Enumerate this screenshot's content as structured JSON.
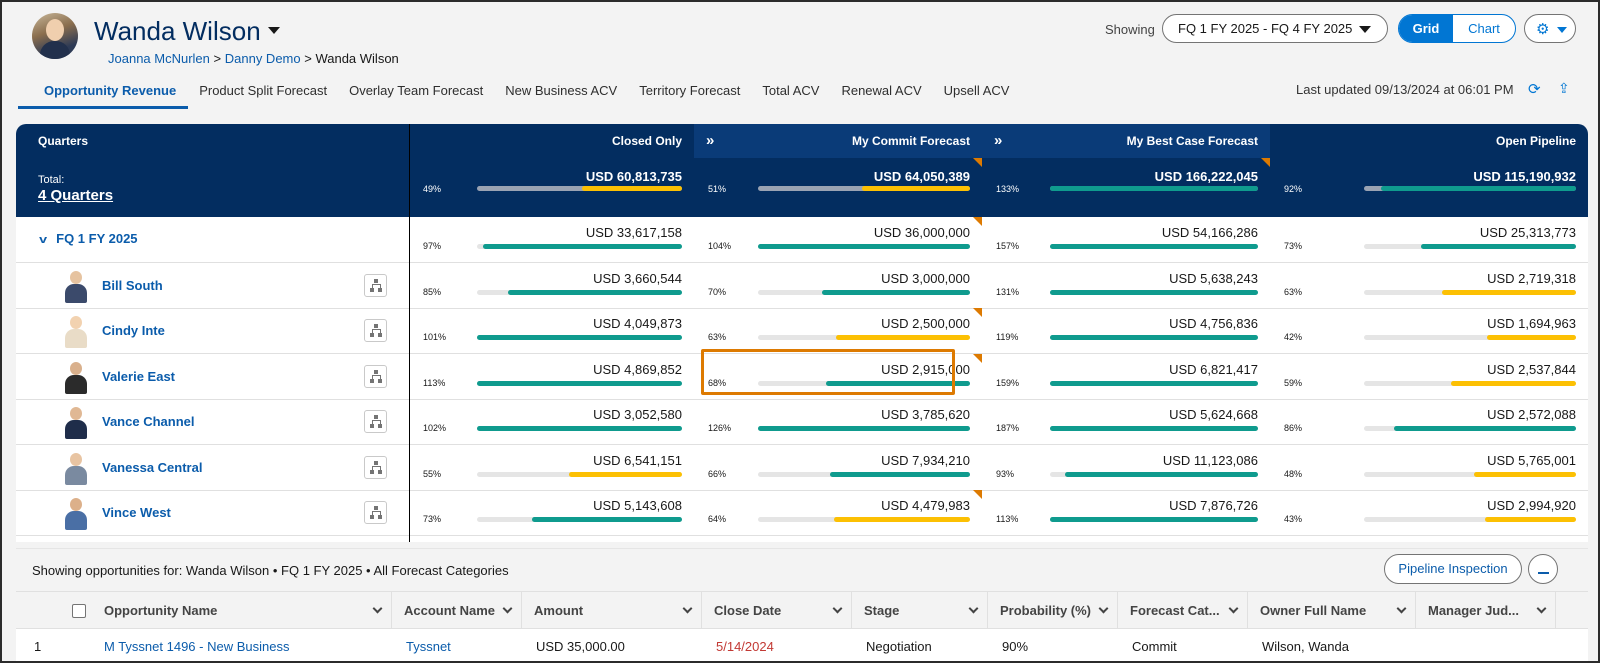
{
  "header": {
    "user_name": "Wanda Wilson",
    "breadcrumb": [
      "Joanna McNurlen",
      "Danny Demo",
      "Wanda Wilson"
    ],
    "breadcrumb_sep": ">",
    "showing_label": "Showing",
    "period_range": "FQ 1 FY 2025 - FQ 4 FY 2025",
    "view_toggle": {
      "grid": "Grid",
      "chart": "Chart",
      "selected": "Grid"
    },
    "last_updated": "Last updated 09/13/2024 at 06:01 PM",
    "icons": {
      "settings": "gear-icon",
      "refresh": "refresh-icon",
      "export": "export-icon"
    }
  },
  "tabs": [
    {
      "label": "Opportunity Revenue",
      "active": true
    },
    {
      "label": "Product Split Forecast",
      "active": false
    },
    {
      "label": "Overlay Team Forecast",
      "active": false
    },
    {
      "label": "New Business ACV",
      "active": false
    },
    {
      "label": "Territory Forecast",
      "active": false
    },
    {
      "label": "Total ACV",
      "active": false
    },
    {
      "label": "Renewal ACV",
      "active": false
    },
    {
      "label": "Upsell ACV",
      "active": false
    }
  ],
  "grid": {
    "columns": [
      "Quarters",
      "Closed Only",
      "My Commit Forecast",
      "My Best Case Forecast",
      "Open Pipeline"
    ],
    "total_label": "Total:",
    "total_value": "4 Quarters",
    "totals": [
      {
        "amount": "USD 60,813,735",
        "pct": "49%",
        "progress": 0.49,
        "bar": "yellow"
      },
      {
        "amount": "USD 64,050,389",
        "pct": "51%",
        "progress": 0.51,
        "bar": "yellow"
      },
      {
        "amount": "USD 166,222,045",
        "pct": "133%",
        "progress": 1.0,
        "bar": "green"
      },
      {
        "amount": "USD 115,190,932",
        "pct": "92%",
        "progress": 0.92,
        "bar": "green"
      }
    ],
    "rows": [
      {
        "name": "FQ 1 FY 2025",
        "type": "quarter",
        "cells": [
          {
            "amount": "USD 33,617,158",
            "pct": "97%",
            "progress": 0.97,
            "bar": "green"
          },
          {
            "amount": "USD 36,000,000",
            "pct": "104%",
            "progress": 1.0,
            "bar": "green"
          },
          {
            "amount": "USD 54,166,286",
            "pct": "157%",
            "progress": 1.0,
            "bar": "green"
          },
          {
            "amount": "USD 25,313,773",
            "pct": "73%",
            "progress": 0.73,
            "bar": "green"
          }
        ]
      },
      {
        "name": "Bill South",
        "type": "person",
        "cells": [
          {
            "amount": "USD 3,660,544",
            "pct": "85%",
            "progress": 0.85,
            "bar": "green"
          },
          {
            "amount": "USD 3,000,000",
            "pct": "70%",
            "progress": 0.7,
            "bar": "green"
          },
          {
            "amount": "USD 5,638,243",
            "pct": "131%",
            "progress": 1.0,
            "bar": "green"
          },
          {
            "amount": "USD 2,719,318",
            "pct": "63%",
            "progress": 0.63,
            "bar": "yellow"
          }
        ]
      },
      {
        "name": "Cindy Inte",
        "type": "person",
        "cells": [
          {
            "amount": "USD 4,049,873",
            "pct": "101%",
            "progress": 1.0,
            "bar": "green"
          },
          {
            "amount": "USD 2,500,000",
            "pct": "63%",
            "progress": 0.63,
            "bar": "yellow"
          },
          {
            "amount": "USD 4,756,836",
            "pct": "119%",
            "progress": 1.0,
            "bar": "green"
          },
          {
            "amount": "USD 1,694,963",
            "pct": "42%",
            "progress": 0.42,
            "bar": "yellow"
          }
        ]
      },
      {
        "name": "Valerie East",
        "type": "person",
        "cells": [
          {
            "amount": "USD 4,869,852",
            "pct": "113%",
            "progress": 1.0,
            "bar": "green"
          },
          {
            "amount": "USD 2,915,000",
            "pct": "68%",
            "progress": 0.68,
            "bar": "green"
          },
          {
            "amount": "USD 6,821,417",
            "pct": "159%",
            "progress": 1.0,
            "bar": "green"
          },
          {
            "amount": "USD 2,537,844",
            "pct": "59%",
            "progress": 0.59,
            "bar": "yellow"
          }
        ]
      },
      {
        "name": "Vance Channel",
        "type": "person",
        "cells": [
          {
            "amount": "USD 3,052,580",
            "pct": "102%",
            "progress": 1.0,
            "bar": "green"
          },
          {
            "amount": "USD 3,785,620",
            "pct": "126%",
            "progress": 1.0,
            "bar": "green"
          },
          {
            "amount": "USD 5,624,668",
            "pct": "187%",
            "progress": 1.0,
            "bar": "green"
          },
          {
            "amount": "USD 2,572,088",
            "pct": "86%",
            "progress": 0.86,
            "bar": "green"
          }
        ]
      },
      {
        "name": "Vanessa Central",
        "type": "person",
        "cells": [
          {
            "amount": "USD 6,541,151",
            "pct": "55%",
            "progress": 0.55,
            "bar": "yellow"
          },
          {
            "amount": "USD 7,934,210",
            "pct": "66%",
            "progress": 0.66,
            "bar": "green"
          },
          {
            "amount": "USD 11,123,086",
            "pct": "93%",
            "progress": 0.93,
            "bar": "green"
          },
          {
            "amount": "USD 5,765,001",
            "pct": "48%",
            "progress": 0.48,
            "bar": "yellow"
          }
        ]
      },
      {
        "name": "Vince West",
        "type": "person",
        "cells": [
          {
            "amount": "USD 5,143,608",
            "pct": "73%",
            "progress": 0.73,
            "bar": "green"
          },
          {
            "amount": "USD 4,479,983",
            "pct": "64%",
            "progress": 0.64,
            "bar": "yellow"
          },
          {
            "amount": "USD 7,876,726",
            "pct": "113%",
            "progress": 1.0,
            "bar": "green"
          },
          {
            "amount": "USD 2,994,920",
            "pct": "43%",
            "progress": 0.43,
            "bar": "yellow"
          }
        ]
      }
    ]
  },
  "opportunities": {
    "showing_text": "Showing opportunities for: Wanda Wilson  •  FQ 1 FY 2025  •  All Forecast Categories",
    "pipeline_button": "Pipeline Inspection",
    "columns": [
      "Opportunity Name",
      "Account Name",
      "Amount",
      "Close Date",
      "Stage",
      "Probability (%)",
      "Forecast Cat...",
      "Owner Full Name",
      "Manager Jud..."
    ],
    "first_row": {
      "index": "1",
      "name": "M Tyssnet 1496 - New Business",
      "account": "Tyssnet",
      "amount": "USD 35,000.00",
      "close_date": "5/14/2024",
      "stage": "Negotiation",
      "probability": "90%",
      "forecast": "Commit",
      "owner": "Wilson, Wanda"
    }
  },
  "colors": {
    "navy": "#032d60",
    "green": "#0f9b8e",
    "yellow": "#fcc003",
    "link": "#0b5cab",
    "focus": "#dd7a01"
  }
}
